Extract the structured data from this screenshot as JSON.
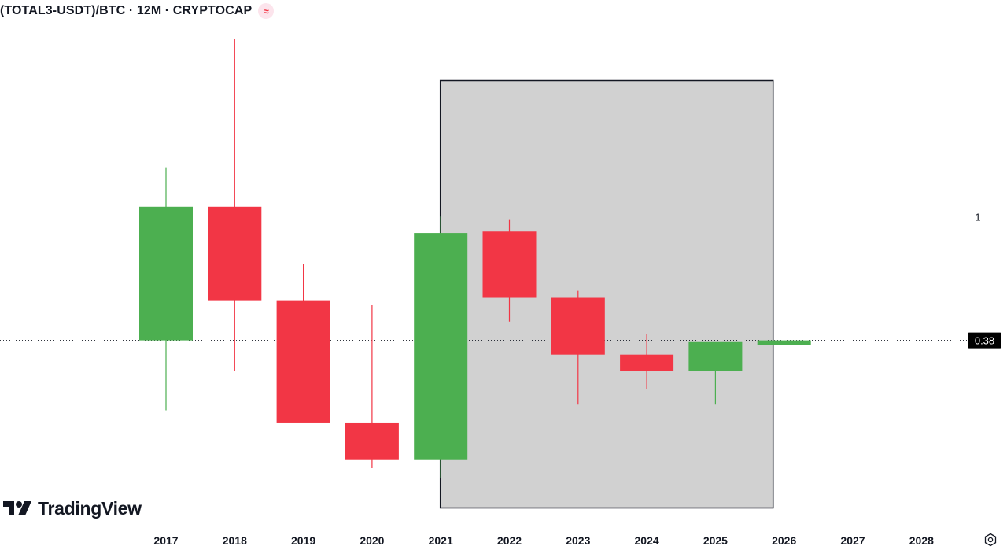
{
  "header": {
    "title": "(TOTAL3-USDT)/BTC · 12M · CRYPTOCAP",
    "badge": "≈"
  },
  "brand": {
    "name": "TradingView"
  },
  "icons": {
    "settings": "settings-icon",
    "logo": "tradingview-logo-icon"
  },
  "colors": {
    "up": "#4caf50",
    "down": "#f23645",
    "box_fill": "#d1d1d1",
    "box_border": "#131722",
    "label_bg": "#000000"
  },
  "chart_data": {
    "type": "candlestick",
    "title": "(TOTAL3-USDT)/BTC · 12M · CRYPTOCAP",
    "x": [
      "2017",
      "2018",
      "2019",
      "2020",
      "2021",
      "2022",
      "2023",
      "2024",
      "2025",
      "2026",
      "2027",
      "2028"
    ],
    "candles": [
      {
        "year": "2017",
        "open": 0.38,
        "high": 1.47,
        "low": 0.22,
        "close": 1.08
      },
      {
        "year": "2018",
        "open": 1.08,
        "high": 4.0,
        "low": 0.3,
        "close": 0.52
      },
      {
        "year": "2019",
        "open": 0.52,
        "high": 0.69,
        "low": 0.22,
        "close": 0.2
      },
      {
        "year": "2020",
        "open": 0.2,
        "high": 0.5,
        "low": 0.14,
        "close": 0.15
      },
      {
        "year": "2021",
        "open": 0.15,
        "high": 1.0,
        "low": 0.13,
        "close": 0.88
      },
      {
        "year": "2022",
        "open": 0.89,
        "high": 0.98,
        "low": 0.44,
        "close": 0.53
      },
      {
        "year": "2023",
        "open": 0.53,
        "high": 0.56,
        "low": 0.23,
        "close": 0.34
      },
      {
        "year": "2024",
        "open": 0.34,
        "high": 0.4,
        "low": 0.26,
        "close": 0.3
      },
      {
        "year": "2025",
        "open": 0.3,
        "high": 0.34,
        "low": 0.23,
        "close": 0.375
      },
      {
        "year": "2026",
        "open": 0.373,
        "high": 0.38,
        "low": 0.372,
        "close": 0.38
      }
    ],
    "last_price": 0.38,
    "last_price_label": "0.38",
    "y_ticks": [
      {
        "value": 1,
        "label": "1"
      }
    ],
    "y_scale": "log",
    "ylim": [
      0.12,
      4.2
    ],
    "highlight_box": {
      "x_start": "2021",
      "x_end": "2026"
    },
    "grid": false
  }
}
